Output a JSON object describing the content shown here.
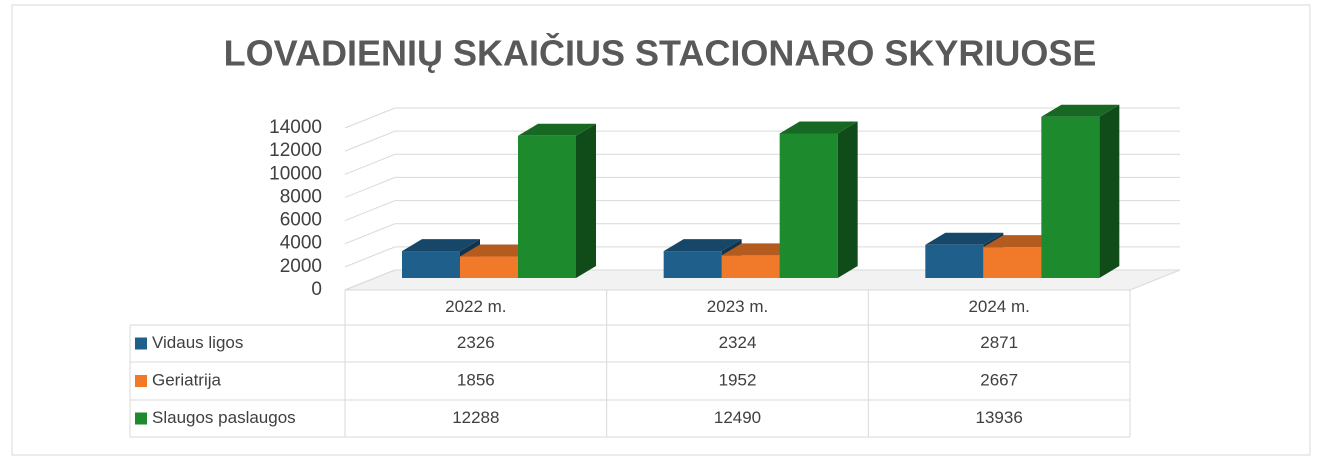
{
  "chart_data": {
    "type": "bar",
    "title": "LOVADIENIŲ SKAIČIUS STACIONARO SKYRIUOSE",
    "categories": [
      "2022 m.",
      "2023 m.",
      "2024 m."
    ],
    "series": [
      {
        "name": "Vidaus ligos",
        "color": "#1f5f8b",
        "values": [
          2326,
          2324,
          2871
        ]
      },
      {
        "name": "Geriatrija",
        "color": "#f07a2a",
        "values": [
          1856,
          1952,
          2667
        ]
      },
      {
        "name": "Slaugos paslaugos",
        "color": "#1e8a2e",
        "values": [
          12288,
          12490,
          13936
        ]
      }
    ],
    "ylim": [
      0,
      14000
    ],
    "yticks": [
      0,
      2000,
      4000,
      6000,
      8000,
      10000,
      12000,
      14000
    ],
    "grid": true
  }
}
